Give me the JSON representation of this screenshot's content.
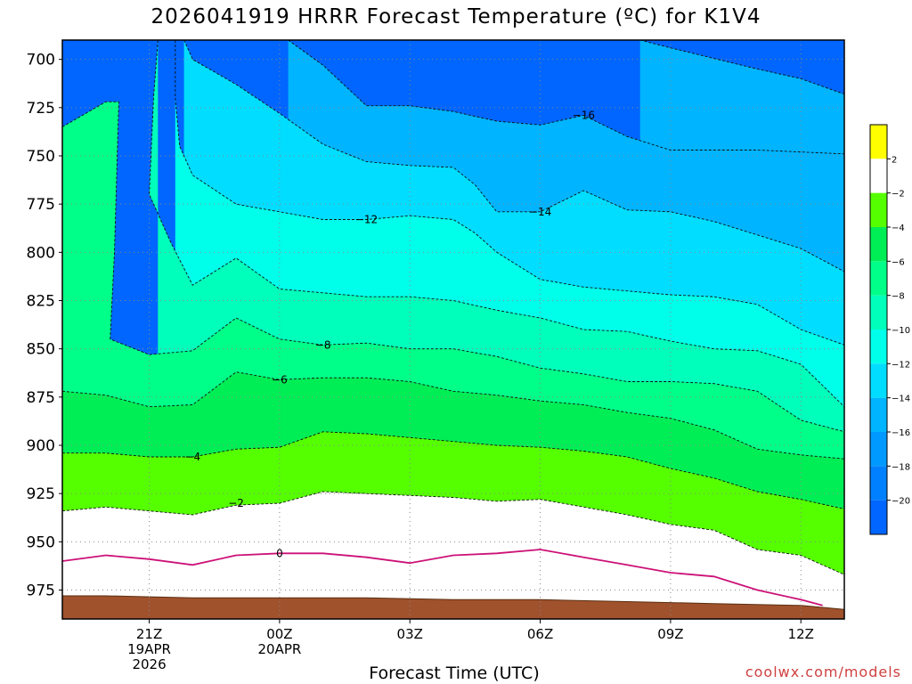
{
  "title": "2026041919 HRRR Forecast Temperature (ºC) for K1V4",
  "xlabel": "Forecast Time (UTC)",
  "credit": "coolwx.com/models",
  "colors": {
    "ground": "#a0522d",
    "freezing_line": "#cc1177",
    "contour_line": "#111111",
    "grid": "#888888"
  },
  "chart_data": {
    "type": "contour",
    "title": "2026041919 HRRR Forecast Temperature (ºC) for K1V4",
    "xlabel": "Forecast Time (UTC)",
    "ylabel": "",
    "xlim": [
      19,
      37
    ],
    "ylim": [
      690,
      990
    ],
    "y_scale": "pressure (inverted, 700 at top)",
    "grid": true,
    "y_ticks": [
      700,
      725,
      750,
      775,
      800,
      825,
      850,
      875,
      900,
      925,
      950,
      975
    ],
    "x_ticks": [
      {
        "x": 21,
        "lines": [
          "21Z",
          "19APR",
          "2026"
        ]
      },
      {
        "x": 24,
        "lines": [
          "00Z",
          "20APR"
        ]
      },
      {
        "x": 27,
        "lines": [
          "03Z"
        ]
      },
      {
        "x": 30,
        "lines": [
          "06Z"
        ]
      },
      {
        "x": 33,
        "lines": [
          "09Z"
        ]
      },
      {
        "x": 36,
        "lines": [
          "12Z"
        ]
      }
    ],
    "colorbar": {
      "levels": [
        -20,
        -18,
        -16,
        -14,
        -12,
        -10,
        -8,
        -6,
        -4,
        -2,
        2
      ],
      "bands": [
        {
          "from": -22,
          "to": -20,
          "color": "#0066ff"
        },
        {
          "from": -20,
          "to": -18,
          "color": "#0080ff"
        },
        {
          "from": -18,
          "to": -16,
          "color": "#0099ff"
        },
        {
          "from": -16,
          "to": -14,
          "color": "#00b4ff"
        },
        {
          "from": -14,
          "to": -12,
          "color": "#00ddff"
        },
        {
          "from": -12,
          "to": -10,
          "color": "#00ffea"
        },
        {
          "from": -10,
          "to": -8,
          "color": "#00ffbb"
        },
        {
          "from": -8,
          "to": -6,
          "color": "#00ff88"
        },
        {
          "from": -6,
          "to": -4,
          "color": "#00ee55"
        },
        {
          "from": -4,
          "to": -2,
          "color": "#55ff00"
        },
        {
          "from": -2,
          "to": 2,
          "color": "#ffffff"
        },
        {
          "from": 2,
          "to": 4,
          "color": "#ffff00"
        }
      ]
    },
    "contours": [
      {
        "level": -16,
        "label_at": [
          31,
          729
        ],
        "points": [
          [
            32.3,
            690
          ],
          [
            33,
            694
          ],
          [
            35,
            705
          ],
          [
            36,
            710
          ],
          [
            37,
            718
          ]
        ]
      },
      {
        "level": -16,
        "label_at": null,
        "points": [
          [
            24.2,
            690
          ],
          [
            25,
            703
          ],
          [
            26,
            724
          ],
          [
            27,
            724
          ],
          [
            28,
            727
          ],
          [
            29,
            732
          ],
          [
            30,
            734
          ],
          [
            31,
            729
          ],
          [
            32,
            740
          ],
          [
            33,
            747
          ],
          [
            35,
            747
          ],
          [
            37,
            749
          ]
        ]
      },
      {
        "level": -14,
        "label_at": [
          30,
          779
        ],
        "points": [
          [
            21.8,
            690
          ],
          [
            22,
            700
          ],
          [
            23,
            713
          ],
          [
            24,
            728
          ],
          [
            25,
            744
          ],
          [
            26,
            753
          ],
          [
            27,
            755
          ],
          [
            28,
            756
          ],
          [
            28.5,
            765
          ],
          [
            29,
            779
          ],
          [
            30,
            779
          ],
          [
            31,
            768
          ],
          [
            32,
            778
          ],
          [
            33,
            779
          ],
          [
            34,
            784
          ],
          [
            35,
            791
          ],
          [
            36,
            798
          ],
          [
            37,
            810
          ]
        ]
      },
      {
        "level": -12,
        "label_at": [
          26,
          783
        ],
        "points": [
          [
            21.6,
            690
          ],
          [
            21.6,
            720
          ],
          [
            21.7,
            745
          ],
          [
            22,
            760
          ],
          [
            23,
            775
          ],
          [
            24,
            779
          ],
          [
            25,
            783
          ],
          [
            26,
            783
          ],
          [
            27,
            781
          ],
          [
            28,
            783
          ],
          [
            28.5,
            790
          ],
          [
            29,
            800
          ],
          [
            30,
            814
          ],
          [
            31,
            818
          ],
          [
            32,
            820
          ],
          [
            33,
            822
          ],
          [
            34,
            823
          ],
          [
            35,
            827
          ],
          [
            36,
            840
          ],
          [
            37,
            848
          ]
        ]
      },
      {
        "level": -10,
        "label_at": null,
        "points": [
          [
            21.2,
            690
          ],
          [
            21.1,
            720
          ],
          [
            21,
            770
          ],
          [
            21.5,
            795
          ],
          [
            22,
            817
          ],
          [
            23,
            803
          ],
          [
            24,
            819
          ],
          [
            25,
            821
          ],
          [
            26,
            823
          ],
          [
            27,
            823
          ],
          [
            28,
            825
          ],
          [
            29,
            830
          ],
          [
            30,
            834
          ],
          [
            31,
            840
          ],
          [
            32,
            841
          ],
          [
            33,
            846
          ],
          [
            34,
            850
          ],
          [
            35,
            851
          ],
          [
            36,
            858
          ],
          [
            37,
            880
          ]
        ]
      },
      {
        "level": -8,
        "label_at": [
          25,
          848
        ],
        "points": [
          [
            19,
            735
          ],
          [
            20,
            722
          ],
          [
            20.3,
            722
          ],
          [
            20.2,
            800
          ],
          [
            20.1,
            845
          ],
          [
            21,
            853
          ],
          [
            22,
            851
          ],
          [
            23,
            834
          ],
          [
            24,
            845
          ],
          [
            25,
            848
          ],
          [
            26,
            847
          ],
          [
            27,
            850
          ],
          [
            28,
            850
          ],
          [
            29,
            854
          ],
          [
            30,
            860
          ],
          [
            31,
            863
          ],
          [
            32,
            867
          ],
          [
            33,
            867
          ],
          [
            34,
            868
          ],
          [
            35,
            872
          ],
          [
            36,
            887
          ],
          [
            37,
            893
          ]
        ]
      },
      {
        "level": -6,
        "label_at": [
          24,
          866
        ],
        "points": [
          [
            19,
            872
          ],
          [
            20,
            874
          ],
          [
            21,
            880
          ],
          [
            22,
            879
          ],
          [
            23,
            862
          ],
          [
            24,
            866
          ],
          [
            25,
            865
          ],
          [
            26,
            865
          ],
          [
            27,
            867
          ],
          [
            28,
            872
          ],
          [
            29,
            874
          ],
          [
            30,
            877
          ],
          [
            31,
            879
          ],
          [
            32,
            883
          ],
          [
            33,
            886
          ],
          [
            34,
            892
          ],
          [
            35,
            902
          ],
          [
            36,
            905
          ],
          [
            37,
            907
          ]
        ]
      },
      {
        "level": -4,
        "label_at": [
          22,
          906
        ],
        "points": [
          [
            19,
            904
          ],
          [
            20,
            904
          ],
          [
            21,
            906
          ],
          [
            22,
            906
          ],
          [
            23,
            902
          ],
          [
            24,
            901
          ],
          [
            25,
            893
          ],
          [
            26,
            894
          ],
          [
            27,
            896
          ],
          [
            28,
            898
          ],
          [
            29,
            900
          ],
          [
            30,
            901
          ],
          [
            31,
            903
          ],
          [
            32,
            906
          ],
          [
            33,
            912
          ],
          [
            34,
            917
          ],
          [
            35,
            924
          ],
          [
            36,
            928
          ],
          [
            37,
            933
          ]
        ]
      },
      {
        "level": -2,
        "label_at": [
          23,
          930
        ],
        "points": [
          [
            19,
            934
          ],
          [
            20,
            932
          ],
          [
            21,
            934
          ],
          [
            22,
            936
          ],
          [
            23,
            931
          ],
          [
            24,
            930
          ],
          [
            25,
            924
          ],
          [
            26,
            925
          ],
          [
            27,
            926
          ],
          [
            28,
            927
          ],
          [
            29,
            929
          ],
          [
            30,
            928
          ],
          [
            31,
            932
          ],
          [
            32,
            936
          ],
          [
            33,
            941
          ],
          [
            34,
            944
          ],
          [
            35,
            954
          ],
          [
            36,
            957
          ],
          [
            37,
            967
          ]
        ]
      }
    ],
    "freezing_line": {
      "level": 0,
      "label_at": [
        24,
        956
      ],
      "points": [
        [
          19,
          960
        ],
        [
          20,
          957
        ],
        [
          21,
          959
        ],
        [
          22,
          962
        ],
        [
          23,
          957
        ],
        [
          24,
          956
        ],
        [
          25,
          956
        ],
        [
          26,
          958
        ],
        [
          27,
          961
        ],
        [
          28,
          957
        ],
        [
          29,
          956
        ],
        [
          30,
          954
        ],
        [
          31,
          958
        ],
        [
          32,
          962
        ],
        [
          33,
          966
        ],
        [
          34,
          968
        ],
        [
          35,
          975
        ],
        [
          36,
          980
        ],
        [
          36.5,
          983
        ]
      ]
    },
    "ground": {
      "surface_points": [
        [
          19,
          978
        ],
        [
          20,
          978
        ],
        [
          22,
          979
        ],
        [
          24,
          979
        ],
        [
          26,
          979
        ],
        [
          28,
          980
        ],
        [
          30,
          980
        ],
        [
          32,
          981
        ],
        [
          34,
          982
        ],
        [
          36,
          983
        ],
        [
          37,
          985
        ]
      ]
    }
  }
}
